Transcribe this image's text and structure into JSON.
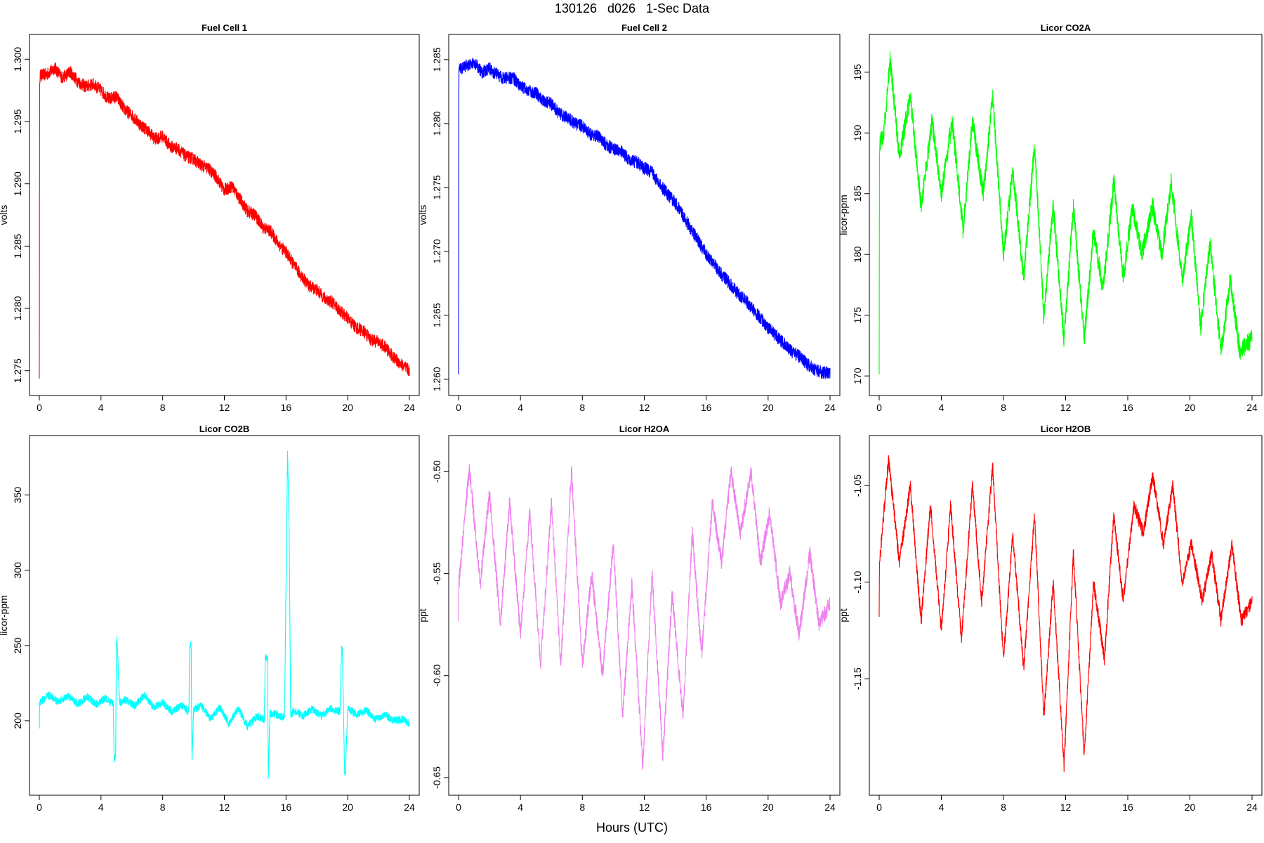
{
  "figure": {
    "title": "130126   d026   1-Sec Data",
    "xlabel": "Hours (UTC)"
  },
  "chart_data": [
    {
      "type": "line",
      "title": "Fuel Cell 1",
      "ylabel": "volts",
      "color": "#ff0000",
      "xlim": [
        0,
        24
      ],
      "ylim": [
        1.2738,
        1.3012
      ],
      "xticks": [
        0,
        4,
        8,
        12,
        16,
        20,
        24
      ],
      "xtick_labels": [
        "0",
        "4",
        "8",
        "12",
        "16",
        "20",
        "24"
      ],
      "yticks": [
        1.275,
        1.28,
        1.285,
        1.29,
        1.295,
        1.3
      ],
      "ytick_labels": [
        "1.275",
        "1.280",
        "1.285",
        "1.290",
        "1.295",
        "1.300"
      ],
      "series": [
        {
          "x": [
            0,
            0.02,
            0.05,
            0.5,
            1,
            1.5,
            2,
            2.5,
            3,
            3.5,
            4,
            4.5,
            5,
            5.5,
            6,
            6.5,
            7,
            7.5,
            8,
            8.5,
            9,
            9.5,
            10,
            10.5,
            11,
            11.5,
            12,
            12.5,
            13,
            13.5,
            14,
            14.5,
            15,
            15.5,
            16,
            16.5,
            17,
            17.5,
            18,
            18.5,
            19,
            19.5,
            20,
            20.5,
            21,
            21.5,
            22,
            22.5,
            23,
            23.5,
            24
          ],
          "y": [
            1.2748,
            1.2985,
            1.2987,
            1.2988,
            1.2993,
            1.2985,
            1.299,
            1.2982,
            1.2978,
            1.298,
            1.2975,
            1.2968,
            1.297,
            1.296,
            1.2955,
            1.2948,
            1.2943,
            1.2936,
            1.2938,
            1.293,
            1.2928,
            1.2922,
            1.292,
            1.2915,
            1.2912,
            1.2905,
            1.2895,
            1.2898,
            1.2888,
            1.2878,
            1.2875,
            1.2865,
            1.2862,
            1.2852,
            1.2845,
            1.2835,
            1.2826,
            1.2818,
            1.2815,
            1.2808,
            1.2805,
            1.2798,
            1.2792,
            1.2785,
            1.2782,
            1.2775,
            1.2773,
            1.2768,
            1.276,
            1.2755,
            1.275
          ],
          "band": 0.0005
        }
      ]
    },
    {
      "type": "line",
      "title": "Fuel Cell 2",
      "ylabel": "volts",
      "color": "#0000ff",
      "xlim": [
        0,
        24
      ],
      "ylim": [
        1.2595,
        1.2862
      ],
      "xticks": [
        0,
        4,
        8,
        12,
        16,
        20,
        24
      ],
      "xtick_labels": [
        "0",
        "4",
        "8",
        "12",
        "16",
        "20",
        "24"
      ],
      "yticks": [
        1.26,
        1.265,
        1.27,
        1.275,
        1.28,
        1.285
      ],
      "ytick_labels": [
        "1.260",
        "1.265",
        "1.270",
        "1.275",
        "1.280",
        "1.285"
      ],
      "series": [
        {
          "x": [
            0,
            0.02,
            0.05,
            0.5,
            1,
            1.5,
            2,
            2.5,
            3,
            3.5,
            4,
            4.5,
            5,
            5.5,
            6,
            6.5,
            7,
            7.5,
            8,
            8.5,
            9,
            9.5,
            10,
            10.5,
            11,
            11.5,
            12,
            12.5,
            13,
            13.5,
            14,
            14.5,
            15,
            15.5,
            16,
            16.5,
            17,
            17.5,
            18,
            18.5,
            19,
            19.5,
            20,
            20.5,
            21,
            21.5,
            22,
            22.5,
            23,
            23.5,
            24
          ],
          "y": [
            1.2608,
            1.2842,
            1.2843,
            1.2845,
            1.2848,
            1.284,
            1.2843,
            1.2838,
            1.2835,
            1.2836,
            1.283,
            1.2825,
            1.2824,
            1.2818,
            1.2815,
            1.2808,
            1.2805,
            1.28,
            1.2798,
            1.2792,
            1.279,
            1.2784,
            1.278,
            1.2778,
            1.2772,
            1.277,
            1.2765,
            1.2762,
            1.2752,
            1.2745,
            1.2738,
            1.2728,
            1.2718,
            1.2708,
            1.2698,
            1.269,
            1.2682,
            1.2675,
            1.2668,
            1.2662,
            1.2655,
            1.2648,
            1.264,
            1.2634,
            1.2628,
            1.2622,
            1.2618,
            1.2612,
            1.2608,
            1.2605,
            1.2605
          ],
          "band": 0.0005
        }
      ]
    },
    {
      "type": "line",
      "title": "Licor CO2A",
      "ylabel": "licor-ppm",
      "color": "#00ff00",
      "xlim": [
        0,
        24
      ],
      "ylim": [
        169.2,
        197.3
      ],
      "xticks": [
        0,
        4,
        8,
        12,
        16,
        20,
        24
      ],
      "xtick_labels": [
        "0",
        "4",
        "8",
        "12",
        "16",
        "20",
        "24"
      ],
      "yticks": [
        170,
        175,
        180,
        185,
        190,
        195
      ],
      "ytick_labels": [
        "170",
        "175",
        "180",
        "185",
        "190",
        "195"
      ],
      "series": [
        {
          "x": [
            0,
            0.02,
            0.3,
            0.7,
            1.3,
            2,
            2.7,
            3.4,
            4,
            4.7,
            5.4,
            6,
            6.7,
            7.3,
            8,
            8.6,
            9.3,
            10,
            10.6,
            11.2,
            11.9,
            12.5,
            13.2,
            13.8,
            14.4,
            15.1,
            15.7,
            16.3,
            16.9,
            17.6,
            18.2,
            18.8,
            19.5,
            20.1,
            20.7,
            21.3,
            22,
            22.6,
            23.2,
            24
          ],
          "y": [
            170.8,
            189,
            190,
            196,
            188,
            193,
            184,
            191,
            185,
            191,
            182,
            191,
            185,
            193,
            180,
            187,
            178,
            189,
            175,
            184,
            173,
            184,
            173,
            182,
            177,
            186,
            178,
            184,
            180,
            184,
            180,
            186,
            178,
            183,
            174,
            181,
            172,
            178,
            172,
            173
          ],
          "band": 0.8
        }
      ]
    },
    {
      "type": "line",
      "title": "Licor CO2B",
      "ylabel": "licor-ppm",
      "color": "#00ffff",
      "xlim": [
        0,
        24
      ],
      "ylim": [
        157,
        383
      ],
      "xticks": [
        0,
        4,
        8,
        12,
        16,
        20,
        24
      ],
      "xtick_labels": [
        "0",
        "4",
        "8",
        "12",
        "16",
        "20",
        "24"
      ],
      "yticks": [
        200,
        250,
        300,
        350
      ],
      "ytick_labels": [
        "200",
        "250",
        "300",
        "350"
      ],
      "series": [
        {
          "x": [
            0,
            0.02,
            0.6,
            1.2,
            1.9,
            2.5,
            3.1,
            3.7,
            4.3,
            4.6,
            4.8,
            4.85,
            4.95,
            5.0,
            5.05,
            5.2,
            5.6,
            6.2,
            6.8,
            7.4,
            8.0,
            8.6,
            9.2,
            9.7,
            9.75,
            9.85,
            9.9,
            10.0,
            10.5,
            11.1,
            11.7,
            12.3,
            12.9,
            13.5,
            14.1,
            14.6,
            14.65,
            14.8,
            14.85,
            14.95,
            15.4,
            15.9,
            16.1,
            16.2,
            16.3,
            16.5,
            17.1,
            17.7,
            18.3,
            18.9,
            19.5,
            19.6,
            19.65,
            19.8,
            19.85,
            20.0,
            20.6,
            21.2,
            21.8,
            22.4,
            23.0,
            23.6,
            24
          ],
          "y": [
            197,
            212,
            217,
            213,
            216,
            211,
            216,
            211,
            215,
            212,
            212,
            175,
            175,
            254,
            254,
            212,
            214,
            210,
            217,
            209,
            212,
            206,
            210,
            206,
            250,
            250,
            171,
            207,
            210,
            201,
            209,
            198,
            208,
            196,
            203,
            201,
            242,
            242,
            162,
            205,
            204,
            202,
            380,
            330,
            203,
            207,
            203,
            208,
            203,
            208,
            206,
            248,
            248,
            165,
            165,
            208,
            204,
            207,
            201,
            204,
            200,
            201,
            198
          ],
          "band": 2.5
        }
      ]
    },
    {
      "type": "line",
      "title": "Licor H2OA",
      "ylabel": "ppt",
      "color": "#ee82ee",
      "xlim": [
        0,
        24
      ],
      "ylim": [
        -0.6538,
        -0.4872
      ],
      "xticks": [
        0,
        4,
        8,
        12,
        16,
        20,
        24
      ],
      "xtick_labels": [
        "0",
        "4",
        "8",
        "12",
        "16",
        "20",
        "24"
      ],
      "yticks": [
        -0.65,
        -0.6,
        -0.55,
        -0.5
      ],
      "ytick_labels": [
        "-0.65",
        "-0.60",
        "-0.55",
        "-0.50"
      ],
      "series": [
        {
          "x": [
            0,
            0.02,
            0.7,
            1.4,
            2.0,
            2.7,
            3.3,
            4.0,
            4.6,
            5.3,
            6.0,
            6.6,
            7.3,
            8.0,
            8.6,
            9.3,
            10.0,
            10.6,
            11.2,
            11.9,
            12.5,
            13.2,
            13.8,
            14.5,
            15.1,
            15.7,
            16.4,
            17.0,
            17.6,
            18.2,
            18.9,
            19.5,
            20.1,
            20.8,
            21.4,
            22.0,
            22.7,
            23.3,
            24
          ],
          "y": [
            -0.57,
            -0.555,
            -0.498,
            -0.555,
            -0.51,
            -0.575,
            -0.515,
            -0.58,
            -0.52,
            -0.595,
            -0.515,
            -0.595,
            -0.5,
            -0.595,
            -0.55,
            -0.6,
            -0.535,
            -0.62,
            -0.555,
            -0.645,
            -0.55,
            -0.64,
            -0.56,
            -0.62,
            -0.53,
            -0.59,
            -0.515,
            -0.545,
            -0.5,
            -0.53,
            -0.5,
            -0.545,
            -0.52,
            -0.565,
            -0.55,
            -0.58,
            -0.54,
            -0.575,
            -0.565
          ],
          "band": 0.004
        }
      ]
    },
    {
      "type": "line",
      "title": "Licor H2OB",
      "ylabel": "ppt",
      "color": "#ff0000",
      "xlim": [
        0,
        24
      ],
      "ylim": [
        -1.2052,
        -1.0292
      ],
      "xticks": [
        0,
        4,
        8,
        12,
        16,
        20,
        24
      ],
      "xtick_labels": [
        "0",
        "4",
        "8",
        "12",
        "16",
        "20",
        "24"
      ],
      "yticks": [
        -1.15,
        -1.1,
        -1.05
      ],
      "ytick_labels": [
        "-1.15",
        "-1.10",
        "-1.05"
      ],
      "series": [
        {
          "x": [
            0,
            0.02,
            0.6,
            1.3,
            2.0,
            2.7,
            3.3,
            4.0,
            4.6,
            5.3,
            6.0,
            6.6,
            7.3,
            8.0,
            8.6,
            9.3,
            10.0,
            10.6,
            11.2,
            11.9,
            12.5,
            13.2,
            13.8,
            14.5,
            15.1,
            15.7,
            16.4,
            17.0,
            17.6,
            18.3,
            18.9,
            19.5,
            20.1,
            20.8,
            21.4,
            22.0,
            22.7,
            23.3,
            24
          ],
          "y": [
            -1.115,
            -1.09,
            -1.036,
            -1.09,
            -1.05,
            -1.12,
            -1.06,
            -1.125,
            -1.06,
            -1.13,
            -1.05,
            -1.11,
            -1.04,
            -1.14,
            -1.075,
            -1.145,
            -1.065,
            -1.17,
            -1.1,
            -1.195,
            -1.085,
            -1.19,
            -1.1,
            -1.14,
            -1.065,
            -1.11,
            -1.06,
            -1.075,
            -1.045,
            -1.08,
            -1.05,
            -1.1,
            -1.08,
            -1.11,
            -1.085,
            -1.12,
            -1.08,
            -1.12,
            -1.11
          ],
          "band": 0.0035
        }
      ]
    }
  ]
}
